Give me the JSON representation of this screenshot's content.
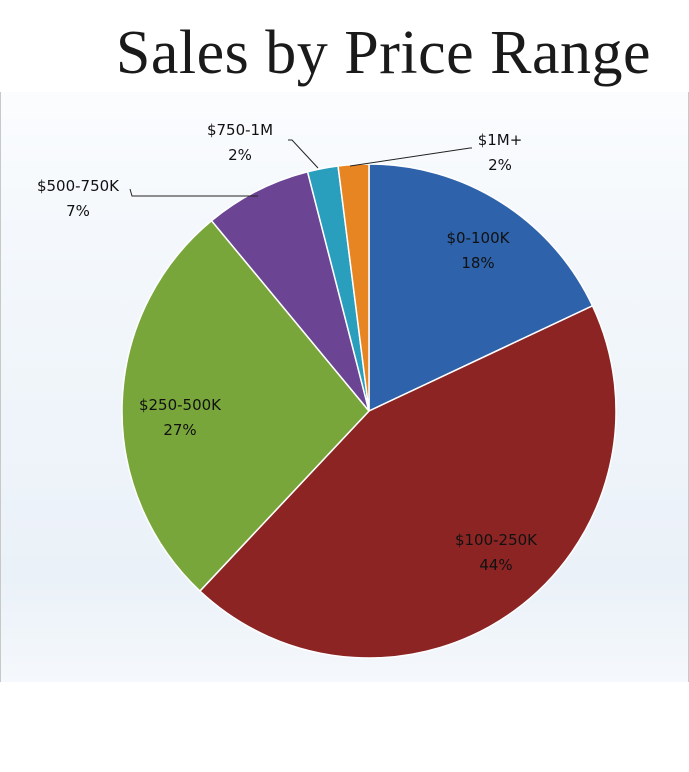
{
  "chart_data": {
    "type": "pie",
    "title": "Sales by Price Range",
    "start_angle_deg": 0,
    "direction": "clockwise",
    "slices": [
      {
        "label": "$0-100K",
        "value": 18,
        "pct_label": "18%",
        "color": "#2e62aa",
        "label_color": "#111111"
      },
      {
        "label": "$100-250K",
        "value": 44,
        "pct_label": "44%",
        "color": "#8c2424",
        "label_color": "#111111"
      },
      {
        "label": "$250-500K",
        "value": 27,
        "pct_label": "27%",
        "color": "#79a63a",
        "label_color": "#111111"
      },
      {
        "label": "$500-750K",
        "value": 7,
        "pct_label": "7%",
        "color": "#6b4593",
        "label_color": "#111111"
      },
      {
        "label": "$750-1M",
        "value": 2,
        "pct_label": "2%",
        "color": "#2a9ebd",
        "label_color": "#111111"
      },
      {
        "label": "$1M+",
        "value": 2,
        "pct_label": "2%",
        "color": "#e78523",
        "label_color": "#111111"
      }
    ]
  }
}
